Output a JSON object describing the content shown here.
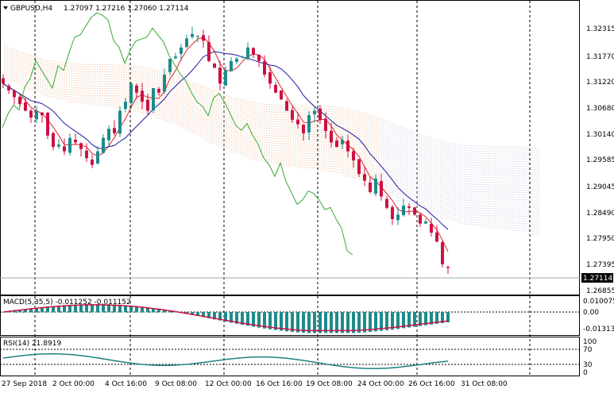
{
  "header": {
    "symbol_tf": "GBPUSD,H4",
    "ohlc": "1.27097 1.27216 1.27060 1.27114"
  },
  "main_price_axis": [
    "1.32315",
    "1.31770",
    "1.31220",
    "1.30680",
    "1.30140",
    "1.29585",
    "1.29045",
    "1.28490",
    "1.27950",
    "1.27395",
    "1.26855"
  ],
  "current_price": "1.27114",
  "macd": {
    "label": "MACD(5,35,5) -0.011252 -0.011152",
    "axis": [
      "0.010075",
      "0.00",
      "-0.013137"
    ]
  },
  "rsi": {
    "label": "RSI(14) 21.8919",
    "axis": [
      "100",
      "70",
      "30",
      "0"
    ]
  },
  "time_axis": [
    "27 Sep 2018",
    "2 Oct 00:00",
    "4 Oct 16:00",
    "9 Oct 08:00",
    "12 Oct 00:00",
    "16 Oct 16:00",
    "19 Oct 08:00",
    "24 Oct 00:00",
    "26 Oct 16:00",
    "31 Oct 08:00"
  ],
  "colors": {
    "bull": "#1e8b8b",
    "bear": "#cc1144",
    "kijun": "#1a1aa6",
    "tenkan": "#dd2222",
    "chikou": "#33aa33",
    "cloud_a": "#e08040",
    "cloud_b": "#b090c0",
    "macd_hist": "#1e8b8b",
    "macd_signal": "#cc1144",
    "rsi_line": "#1e8080"
  },
  "chart_data": {
    "type": "candlestick",
    "symbol": "GBPUSD",
    "timeframe": "H4",
    "ylim": [
      1.266,
      1.327
    ],
    "close_path": [
      1.312,
      1.3105,
      1.309,
      1.3075,
      1.306,
      1.3045,
      1.306,
      1.305,
      1.3005,
      1.298,
      1.2985,
      1.297,
      1.3,
      1.299,
      1.2975,
      1.2955,
      1.294,
      1.297,
      1.3,
      1.302,
      1.301,
      1.306,
      1.308,
      1.312,
      1.31,
      1.308,
      1.306,
      1.311,
      1.31,
      1.314,
      1.3175,
      1.318,
      1.32,
      1.322,
      1.323,
      1.3225,
      1.3215,
      1.317,
      1.3155,
      1.312,
      1.315,
      1.317,
      1.3175,
      1.318,
      1.32,
      1.3185,
      1.317,
      1.314,
      1.312,
      1.31,
      1.3085,
      1.306,
      1.304,
      1.303,
      1.301,
      1.305,
      1.306,
      1.304,
      1.3015,
      1.299,
      1.298,
      1.2995,
      1.297,
      1.295,
      1.292,
      1.2905,
      1.288,
      1.291,
      1.287,
      1.2845,
      1.282,
      1.283,
      1.285,
      1.2845,
      1.283,
      1.281,
      1.2815,
      1.279,
      1.277,
      1.272,
      1.2712
    ]
  }
}
